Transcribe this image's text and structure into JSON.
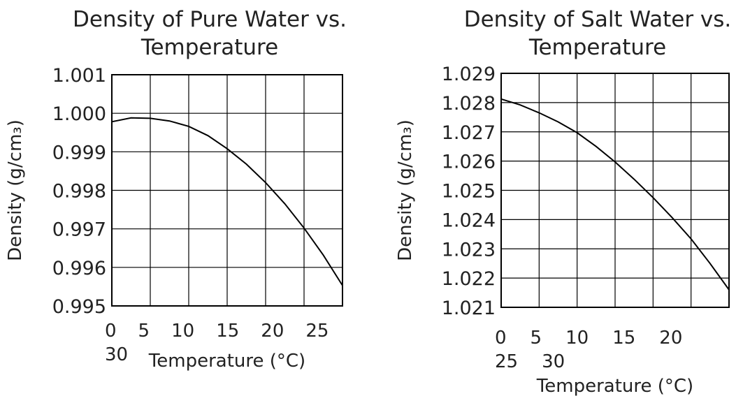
{
  "chart_data": [
    {
      "type": "line",
      "title": "Density of Pure Water vs. Temperature",
      "x_label": "Temperature (°C)",
      "y_label": "Density (g/cm₃)",
      "x": [
        0,
        2.5,
        5,
        7.5,
        10,
        12.5,
        15,
        17.5,
        20,
        22.5,
        25,
        27.5,
        30
      ],
      "series": [
        {
          "name": "Pure Water",
          "color": "#000000",
          "values": [
            0.99978,
            0.99988,
            0.99987,
            0.9998,
            0.99966,
            0.99942,
            0.99908,
            0.99868,
            0.9982,
            0.99765,
            0.99702,
            0.99632,
            0.99553
          ]
        }
      ],
      "xlim": [
        0,
        30
      ],
      "xticks": [
        0,
        5,
        10,
        15,
        20,
        25,
        30
      ],
      "ylim": [
        0.995,
        1.001
      ],
      "yticks": [
        0.995,
        0.996,
        0.997,
        0.998,
        0.999,
        {
          "value": 1.0,
          "label": "1.000"
        },
        1.001
      ],
      "grid": true
    },
    {
      "type": "line",
      "title": "Density of Salt Water vs. Temperature",
      "x_label": "Temperature (°C)",
      "y_label": "Density (g/cm₃)",
      "x": [
        0,
        2.5,
        5,
        7.5,
        10,
        12.5,
        15,
        17.5,
        20,
        22.5,
        25,
        27.5,
        30
      ],
      "series": [
        {
          "name": "Salt Water",
          "color": "#000000",
          "values": [
            1.02812,
            1.02792,
            1.02765,
            1.02734,
            1.02697,
            1.0265,
            1.02597,
            1.02538,
            1.02475,
            1.02407,
            1.02334,
            1.0225,
            1.0216
          ]
        }
      ],
      "xlim": [
        0,
        30
      ],
      "xticks": [
        0,
        5,
        10,
        15,
        20,
        25,
        30
      ],
      "ylim": [
        1.021,
        1.029
      ],
      "yticks": [
        1.021,
        1.022,
        1.023,
        1.024,
        1.025,
        1.026,
        1.027,
        1.028,
        1.029
      ],
      "grid": true
    }
  ]
}
